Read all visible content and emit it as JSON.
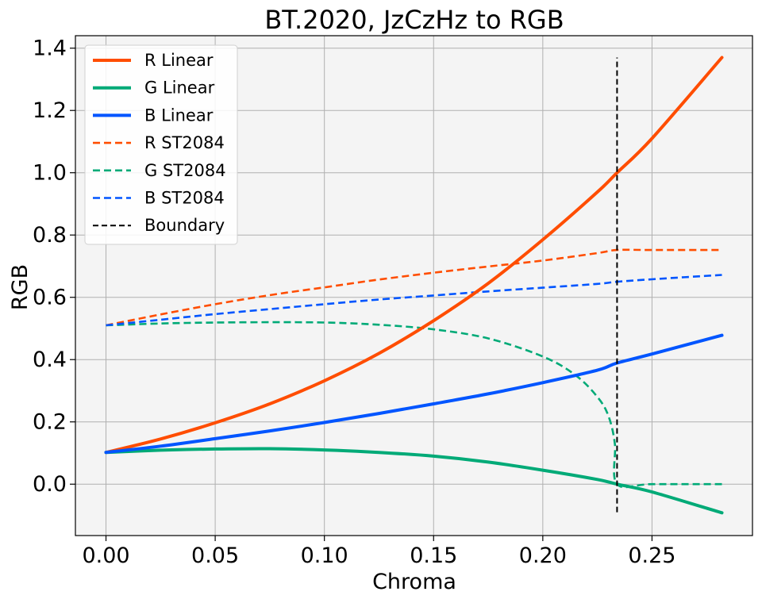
{
  "chart_data": {
    "type": "line",
    "title": "BT.2020, JzCzHz to RGB",
    "xlabel": "Chroma",
    "ylabel": "RGB",
    "xlim": [
      -0.014,
      0.296
    ],
    "ylim": [
      -0.165,
      1.44
    ],
    "xticks": [
      0.0,
      0.05,
      0.1,
      0.15,
      0.2,
      0.25
    ],
    "xtick_labels": [
      "0.00",
      "0.05",
      "0.10",
      "0.15",
      "0.20",
      "0.25"
    ],
    "yticks": [
      0.0,
      0.2,
      0.4,
      0.6,
      0.8,
      1.0,
      1.2,
      1.4
    ],
    "ytick_labels": [
      "0.0",
      "0.2",
      "0.4",
      "0.6",
      "0.8",
      "1.0",
      "1.2",
      "1.4"
    ],
    "grid": true,
    "legend_position": "top-left",
    "series": [
      {
        "name": "R Linear",
        "color": "#ff4d00",
        "dash": "solid",
        "x": [
          0.0,
          0.025,
          0.05,
          0.075,
          0.1,
          0.125,
          0.15,
          0.175,
          0.2,
          0.225,
          0.234,
          0.25,
          0.282
        ],
        "y": [
          0.102,
          0.145,
          0.197,
          0.258,
          0.332,
          0.42,
          0.525,
          0.645,
          0.785,
          0.938,
          1.0,
          1.11,
          1.37
        ]
      },
      {
        "name": "G Linear",
        "color": "#00aa77",
        "dash": "solid",
        "x": [
          0.0,
          0.025,
          0.05,
          0.075,
          0.1,
          0.125,
          0.15,
          0.175,
          0.2,
          0.225,
          0.234,
          0.25,
          0.282
        ],
        "y": [
          0.102,
          0.109,
          0.113,
          0.114,
          0.11,
          0.102,
          0.09,
          0.071,
          0.045,
          0.015,
          0.0,
          -0.025,
          -0.092
        ]
      },
      {
        "name": "B Linear",
        "color": "#0055ff",
        "dash": "solid",
        "x": [
          0.0,
          0.025,
          0.05,
          0.075,
          0.1,
          0.125,
          0.15,
          0.175,
          0.2,
          0.225,
          0.234,
          0.25,
          0.282
        ],
        "y": [
          0.102,
          0.122,
          0.146,
          0.171,
          0.198,
          0.227,
          0.258,
          0.29,
          0.326,
          0.366,
          0.389,
          0.418,
          0.478
        ]
      },
      {
        "name": "R ST2084",
        "color": "#ff4d00",
        "dash": "dashed",
        "x": [
          0.0,
          0.025,
          0.05,
          0.075,
          0.1,
          0.125,
          0.15,
          0.175,
          0.2,
          0.225,
          0.234,
          0.25,
          0.282
        ],
        "y": [
          0.51,
          0.545,
          0.578,
          0.607,
          0.632,
          0.657,
          0.679,
          0.699,
          0.718,
          0.742,
          0.752,
          0.752,
          0.752
        ]
      },
      {
        "name": "G ST2084",
        "color": "#00aa77",
        "dash": "dashed",
        "x": [
          0.0,
          0.025,
          0.05,
          0.075,
          0.1,
          0.125,
          0.15,
          0.175,
          0.2,
          0.215,
          0.225,
          0.23,
          0.233,
          0.234,
          0.25,
          0.282
        ],
        "y": [
          0.51,
          0.516,
          0.519,
          0.52,
          0.519,
          0.512,
          0.497,
          0.468,
          0.41,
          0.35,
          0.28,
          0.22,
          0.13,
          0.0,
          0.0,
          0.0
        ]
      },
      {
        "name": "B ST2084",
        "color": "#0055ff",
        "dash": "dashed",
        "x": [
          0.0,
          0.025,
          0.05,
          0.075,
          0.1,
          0.125,
          0.15,
          0.175,
          0.2,
          0.225,
          0.234,
          0.25,
          0.282
        ],
        "y": [
          0.51,
          0.528,
          0.546,
          0.562,
          0.578,
          0.593,
          0.606,
          0.619,
          0.631,
          0.643,
          0.65,
          0.658,
          0.672
        ]
      },
      {
        "name": "Boundary",
        "color": "#000000",
        "dash": "dashed",
        "thin": true,
        "x": [
          0.234,
          0.234
        ],
        "y": [
          -0.09,
          1.37
        ]
      }
    ]
  }
}
